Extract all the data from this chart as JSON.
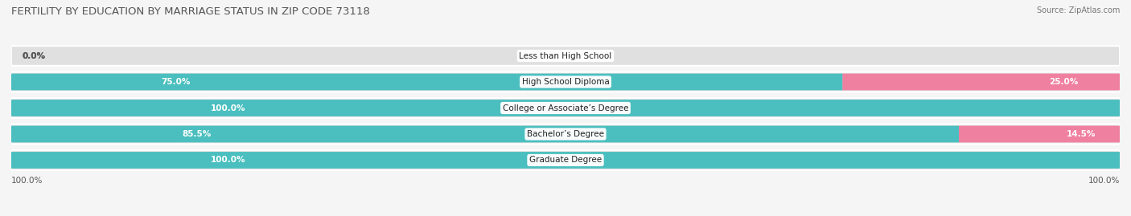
{
  "title": "FERTILITY BY EDUCATION BY MARRIAGE STATUS IN ZIP CODE 73118",
  "source": "Source: ZipAtlas.com",
  "categories": [
    "Less than High School",
    "High School Diploma",
    "College or Associate’s Degree",
    "Bachelor’s Degree",
    "Graduate Degree"
  ],
  "married": [
    0.0,
    75.0,
    100.0,
    85.5,
    100.0
  ],
  "unmarried": [
    0.0,
    25.0,
    0.0,
    14.5,
    0.0
  ],
  "married_color": "#4BBFBF",
  "unmarried_color": "#F080A0",
  "bg_color": "#f5f5f5",
  "bar_bg_color": "#e0e0e0",
  "title_fontsize": 9.5,
  "label_fontsize": 7.5,
  "tick_fontsize": 7.5,
  "legend_fontsize": 8
}
